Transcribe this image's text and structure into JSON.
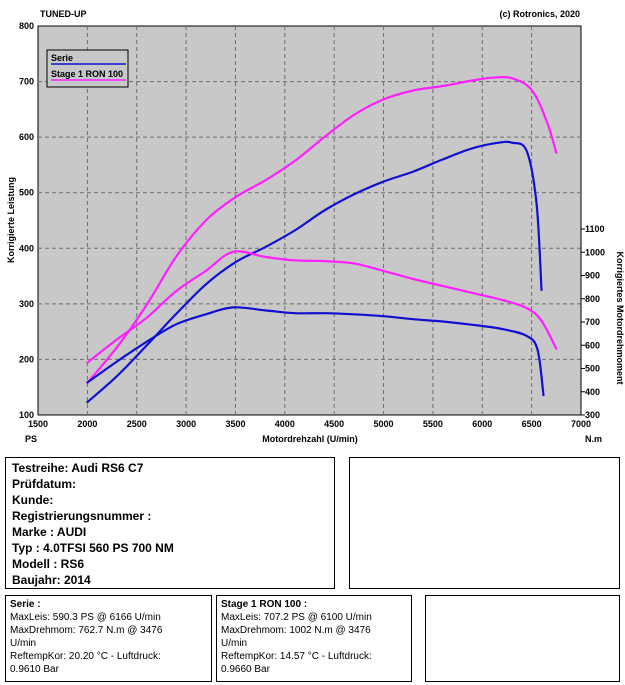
{
  "header": {
    "left": "TUNED-UP",
    "right": "(c) Rotronics, 2020"
  },
  "chart_data": {
    "type": "line",
    "xlabel": "Motordrehzahl (U/min)",
    "x_unit_left": "PS",
    "x_unit_right": "N.m",
    "ylabel_left": "Korrigierte Leistung",
    "ylabel_right": "Korrigiertes Motordrehmoment",
    "xlim": [
      1500,
      7000
    ],
    "ylim_left": [
      100,
      800
    ],
    "ylim_right": [
      300,
      1100
    ],
    "x_ticks": [
      1500,
      2000,
      2500,
      3000,
      3500,
      4000,
      4500,
      5000,
      5500,
      6000,
      6500,
      7000
    ],
    "y_left_ticks": [
      100,
      200,
      300,
      400,
      500,
      600,
      700,
      800
    ],
    "y_right_ticks": [
      300,
      400,
      500,
      600,
      700,
      800,
      900,
      1000,
      1100
    ],
    "grid": true,
    "legend_position": "top-left",
    "series": [
      {
        "name": "Serie",
        "quantity": "power",
        "axis": "left",
        "color": "#1010d0",
        "points": [
          [
            2000,
            123
          ],
          [
            2300,
            170
          ],
          [
            2600,
            225
          ],
          [
            2900,
            282
          ],
          [
            3200,
            335
          ],
          [
            3500,
            375
          ],
          [
            3800,
            402
          ],
          [
            4100,
            432
          ],
          [
            4400,
            468
          ],
          [
            4700,
            497
          ],
          [
            5000,
            520
          ],
          [
            5300,
            538
          ],
          [
            5600,
            560
          ],
          [
            5900,
            580
          ],
          [
            6166,
            590
          ],
          [
            6300,
            590
          ],
          [
            6450,
            575
          ],
          [
            6550,
            480
          ],
          [
            6600,
            325
          ]
        ]
      },
      {
        "name": "Stage 1 RON 100",
        "quantity": "power",
        "axis": "left",
        "color": "#ff20ff",
        "points": [
          [
            2000,
            158
          ],
          [
            2300,
            222
          ],
          [
            2600,
            298
          ],
          [
            2900,
            385
          ],
          [
            3200,
            450
          ],
          [
            3500,
            492
          ],
          [
            3800,
            522
          ],
          [
            4100,
            557
          ],
          [
            4400,
            600
          ],
          [
            4700,
            640
          ],
          [
            5000,
            668
          ],
          [
            5300,
            684
          ],
          [
            5600,
            692
          ],
          [
            5900,
            702
          ],
          [
            6100,
            707
          ],
          [
            6300,
            706
          ],
          [
            6500,
            685
          ],
          [
            6650,
            630
          ],
          [
            6750,
            572
          ]
        ]
      },
      {
        "name": "Serie",
        "quantity": "torque",
        "axis": "right",
        "color": "#1010d0",
        "points": [
          [
            2000,
            440
          ],
          [
            2300,
            530
          ],
          [
            2600,
            615
          ],
          [
            2900,
            690
          ],
          [
            3200,
            733
          ],
          [
            3476,
            763
          ],
          [
            3800,
            750
          ],
          [
            4100,
            738
          ],
          [
            4400,
            738
          ],
          [
            4700,
            733
          ],
          [
            5000,
            725
          ],
          [
            5300,
            712
          ],
          [
            5600,
            702
          ],
          [
            5900,
            688
          ],
          [
            6200,
            670
          ],
          [
            6450,
            640
          ],
          [
            6560,
            580
          ],
          [
            6620,
            385
          ]
        ]
      },
      {
        "name": "Stage 1 RON 100",
        "quantity": "torque",
        "axis": "right",
        "color": "#ff20ff",
        "points": [
          [
            2000,
            525
          ],
          [
            2300,
            625
          ],
          [
            2600,
            718
          ],
          [
            2900,
            833
          ],
          [
            3200,
            920
          ],
          [
            3476,
            1002
          ],
          [
            3800,
            980
          ],
          [
            4100,
            965
          ],
          [
            4400,
            962
          ],
          [
            4700,
            952
          ],
          [
            5000,
            920
          ],
          [
            5300,
            885
          ],
          [
            5600,
            855
          ],
          [
            5900,
            825
          ],
          [
            6200,
            795
          ],
          [
            6450,
            760
          ],
          [
            6600,
            705
          ],
          [
            6750,
            585
          ]
        ]
      }
    ]
  },
  "info": {
    "lines": [
      "Testreihe: Audi RS6 C7",
      "Prüfdatum:",
      "Kunde:",
      "Registrierungsnummer  :",
      "Marke  : AUDI",
      "Typ  : 4.0TFSI 560 PS 700 NM",
      "Modell  : RS6",
      "Baujahr: 2014"
    ]
  },
  "serie": {
    "title": "Serie :",
    "lines": [
      "MaxLeis: 590.3 PS @ 6166 U/min",
      "MaxDrehmom: 762.7 N.m @ 3476",
      "U/min",
      "ReftempKor: 20.20 °C - Luftdruck:",
      "0.9610 Bar"
    ]
  },
  "stage1": {
    "title": "Stage 1 RON 100 :",
    "lines": [
      "MaxLeis: 707.2 PS @ 6100 U/min",
      "MaxDrehmom: 1002 N.m @ 3476",
      "U/min",
      "ReftempKor: 14.57 °C - Luftdruck:",
      "0.9660 Bar"
    ]
  }
}
